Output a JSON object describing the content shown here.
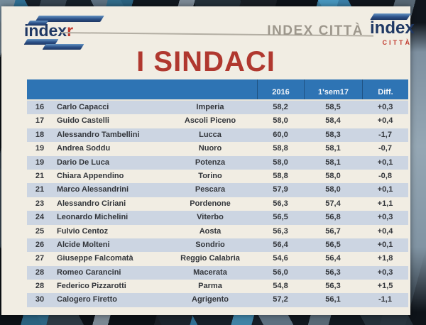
{
  "header": {
    "logo_left_text": "index",
    "logo_left_suffix": "r",
    "brand_text": "INDEX CITTÀ",
    "logo_right_text": "index",
    "logo_right_subtext": "CITTÀ"
  },
  "title": "I SINDACI",
  "table": {
    "columns": {
      "y2016": "2016",
      "sem17": "1'sem17",
      "diff": "Diff."
    },
    "rows": [
      {
        "rank": "16",
        "name": "Carlo Capacci",
        "city": "Imperia",
        "y2016": "58,2",
        "sem17": "58,5",
        "diff": "+0,3"
      },
      {
        "rank": "17",
        "name": "Guido Castelli",
        "city": "Ascoli Piceno",
        "y2016": "58,0",
        "sem17": "58,4",
        "diff": "+0,4"
      },
      {
        "rank": "18",
        "name": "Alessandro Tambellini",
        "city": "Lucca",
        "y2016": "60,0",
        "sem17": "58,3",
        "diff": "-1,7"
      },
      {
        "rank": "19",
        "name": "Andrea Soddu",
        "city": "Nuoro",
        "y2016": "58,8",
        "sem17": "58,1",
        "diff": "-0,7"
      },
      {
        "rank": "19",
        "name": "Dario De Luca",
        "city": "Potenza",
        "y2016": "58,0",
        "sem17": "58,1",
        "diff": "+0,1"
      },
      {
        "rank": "21",
        "name": "Chiara Appendino",
        "city": "Torino",
        "y2016": "58,8",
        "sem17": "58,0",
        "diff": "-0,8"
      },
      {
        "rank": "21",
        "name": "Marco Alessandrini",
        "city": "Pescara",
        "y2016": "57,9",
        "sem17": "58,0",
        "diff": "+0,1"
      },
      {
        "rank": "23",
        "name": "Alessandro Ciriani",
        "city": "Pordenone",
        "y2016": "56,3",
        "sem17": "57,4",
        "diff": "+1,1"
      },
      {
        "rank": "24",
        "name": "Leonardo Michelini",
        "city": "Viterbo",
        "y2016": "56,5",
        "sem17": "56,8",
        "diff": "+0,3"
      },
      {
        "rank": "25",
        "name": "Fulvio Centoz",
        "city": "Aosta",
        "y2016": "56,3",
        "sem17": "56,7",
        "diff": "+0,4"
      },
      {
        "rank": "26",
        "name": "Alcide Molteni",
        "city": "Sondrio",
        "y2016": "56,4",
        "sem17": "56,5",
        "diff": "+0,1"
      },
      {
        "rank": "27",
        "name": "Giuseppe Falcomatà",
        "city": "Reggio Calabria",
        "y2016": "54,6",
        "sem17": "56,4",
        "diff": "+1,8"
      },
      {
        "rank": "28",
        "name": "Romeo Carancini",
        "city": "Macerata",
        "y2016": "56,0",
        "sem17": "56,3",
        "diff": "+0,3"
      },
      {
        "rank": "28",
        "name": "Federico Pizzarotti",
        "city": "Parma",
        "y2016": "54,8",
        "sem17": "56,3",
        "diff": "+1,5"
      },
      {
        "rank": "30",
        "name": "Calogero Firetto",
        "city": "Agrigento",
        "y2016": "57,2",
        "sem17": "56,1",
        "diff": "-1,1"
      }
    ]
  },
  "colors": {
    "header_blue": "#2e74b4",
    "row_alt": "#ccd5e2",
    "row_plain": "#f1ede3",
    "title_red": "#b0382f",
    "logo_navy": "#1f3864",
    "logo_red": "#c13b2f",
    "brand_gray": "#9d978c"
  }
}
